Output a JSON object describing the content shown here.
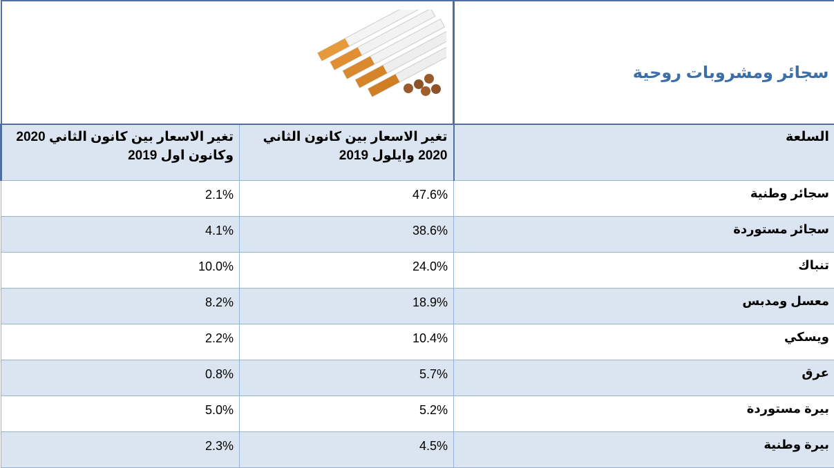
{
  "title": "سجائر ومشروبات روحية",
  "table": {
    "header": [
      "السلعة",
      "تغير الاسعار بين كانون الثاني  2020 وايلول 2019",
      "تغير الاسعار بين كانون الثاني 2020 وكانون اول 2019"
    ],
    "rows": [
      [
        "سجائر وطنية",
        "47.6%",
        "2.1%"
      ],
      [
        "سجائر مستوردة",
        "38.6%",
        "4.1%"
      ],
      [
        "تنباك",
        "24.0%",
        "10.0%"
      ],
      [
        "معسل ومدبس",
        "18.9%",
        "8.2%"
      ],
      [
        "ويسكي",
        "10.4%",
        "2.2%"
      ],
      [
        "عرق",
        "5.7%",
        "0.8%"
      ],
      [
        "بيرة مستوردة",
        "5.2%",
        "5.0%"
      ],
      [
        "بيرة وطنية",
        "4.5%",
        "2.3%"
      ]
    ]
  }
}
